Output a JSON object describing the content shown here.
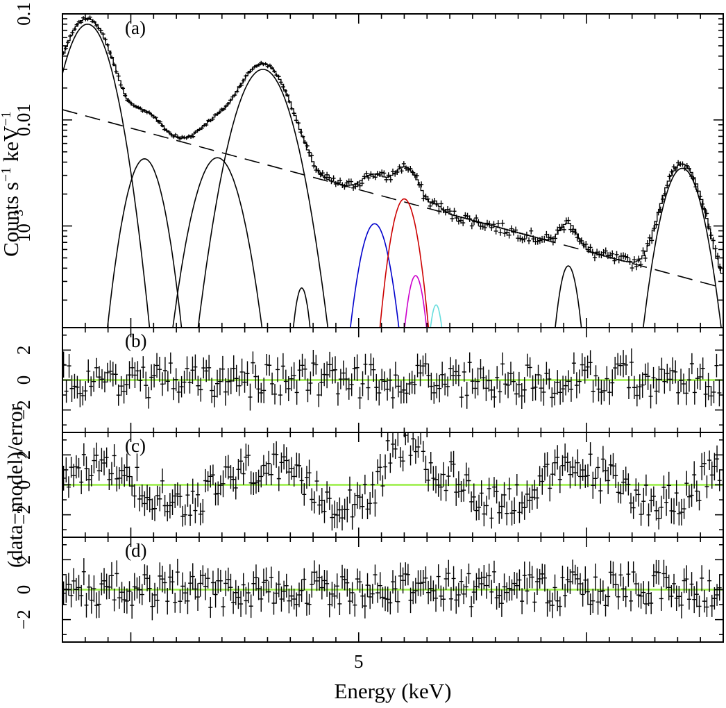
{
  "chart_data": [
    {
      "type": "line",
      "panel_label": "(a)",
      "yscale": "log",
      "ylim": [
        0.00011,
        0.1
      ],
      "xlim": [
        3.7,
        6.6
      ],
      "ylabel_main": "Counts s",
      "ylabel_sup1": "−1",
      "ylabel_mid": " keV",
      "ylabel_sup2": "−1",
      "yticks": [
        {
          "value": 0.1,
          "text": "0.1"
        },
        {
          "value": 0.01,
          "text": "0.01"
        },
        {
          "value": 0.001,
          "base": "10",
          "exp": "−3"
        }
      ],
      "continuum": {
        "x": [
          3.7,
          6.6
        ],
        "y": [
          0.0125,
          0.00026
        ],
        "style": "dashed"
      },
      "lines": [
        {
          "name": "line-1",
          "center": 3.81,
          "peak": 0.08,
          "sigma": 0.075,
          "color": "#000000"
        },
        {
          "name": "line-2",
          "center": 4.06,
          "peak": 0.0043,
          "sigma": 0.06,
          "color": "#000000"
        },
        {
          "name": "line-3",
          "center": 4.38,
          "peak": 0.0044,
          "sigma": 0.072,
          "color": "#000000"
        },
        {
          "name": "line-4",
          "center": 4.58,
          "peak": 0.03,
          "sigma": 0.085,
          "color": "#000000"
        },
        {
          "name": "line-5",
          "center": 4.75,
          "peak": 0.00026,
          "sigma": 0.028,
          "color": "#000000"
        },
        {
          "name": "line-blue",
          "center": 5.07,
          "peak": 0.00105,
          "sigma": 0.05,
          "color": "#0000cc"
        },
        {
          "name": "line-red",
          "center": 5.2,
          "peak": 0.0018,
          "sigma": 0.045,
          "color": "#cc0000"
        },
        {
          "name": "line-magenta",
          "center": 5.25,
          "peak": 0.00034,
          "sigma": 0.032,
          "color": "#cc00cc"
        },
        {
          "name": "line-cyan",
          "center": 5.34,
          "peak": 0.00018,
          "sigma": 0.025,
          "color": "#66dddd"
        },
        {
          "name": "line-6",
          "center": 5.92,
          "peak": 0.00042,
          "sigma": 0.035,
          "color": "#000000"
        },
        {
          "name": "line-7",
          "center": 6.42,
          "peak": 0.0035,
          "sigma": 0.065,
          "color": "#000000"
        }
      ]
    },
    {
      "type": "scatter",
      "panel_label": "(b)",
      "ylim": [
        -3.5,
        3.5
      ],
      "yticks": [
        {
          "value": 2,
          "text": "2"
        },
        {
          "value": 0,
          "text": "0"
        },
        {
          "value": -2,
          "text": "−2"
        }
      ],
      "zero_line_color": "#99ee44",
      "residual_model": "flat",
      "residual_points": 240
    },
    {
      "type": "scatter",
      "panel_label": "(c)",
      "ylim": [
        -3.5,
        3.5
      ],
      "yticks": [
        {
          "value": 2,
          "text": "2"
        },
        {
          "value": 0,
          "text": "0"
        },
        {
          "value": -2,
          "text": "−2"
        }
      ],
      "zero_line_color": "#99ee44",
      "residual_model": "systematic",
      "residual_points": 260
    },
    {
      "type": "scatter",
      "panel_label": "(d)",
      "ylim": [
        -3.5,
        3.5
      ],
      "yticks": [
        {
          "value": 2,
          "text": "2"
        },
        {
          "value": 0,
          "text": "0"
        },
        {
          "value": -2,
          "text": "−2"
        }
      ],
      "zero_line_color": "#99ee44",
      "residual_model": "flat",
      "residual_points": 260
    }
  ],
  "shared": {
    "xlabel": "Energy (keV)",
    "ylabel_residual": "(data−model)/error",
    "xticks": [
      {
        "value": 5,
        "text": "5"
      }
    ],
    "colors": {
      "frame": "#000000",
      "zero_line": "#99ee44"
    }
  }
}
